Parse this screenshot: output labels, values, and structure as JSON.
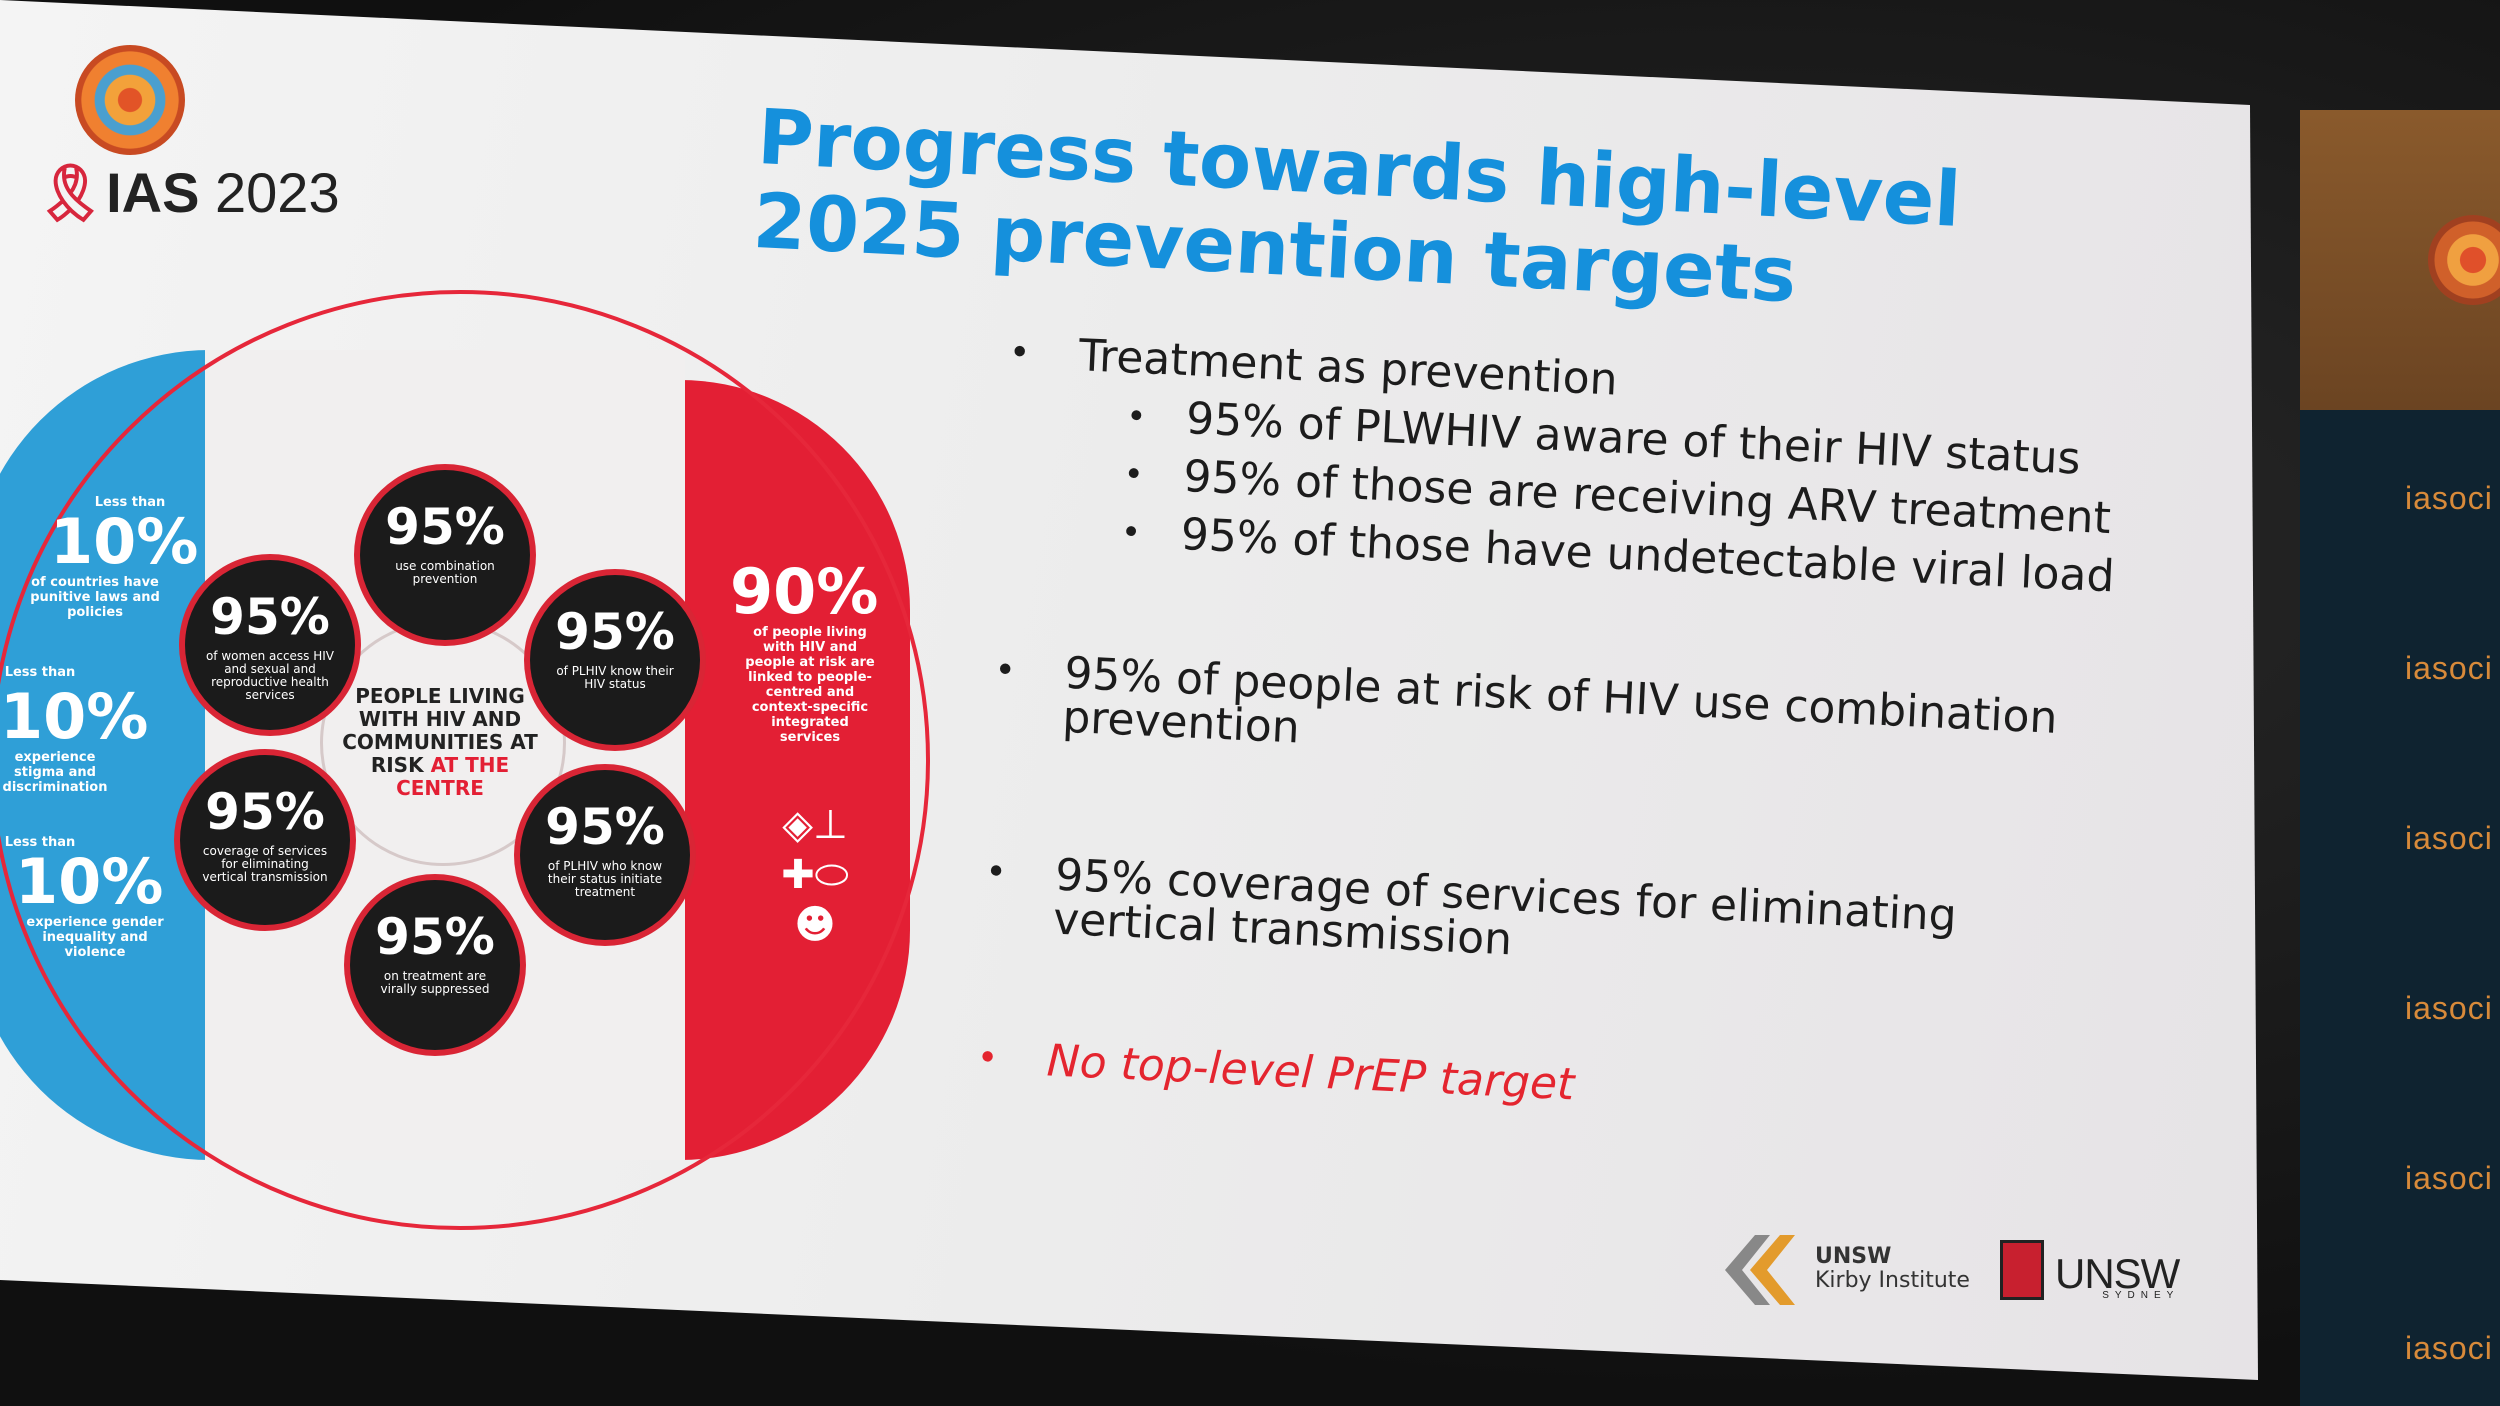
{
  "event": {
    "ribbon": "♑",
    "brand": "IAS",
    "year": "2023"
  },
  "slide": {
    "title_line1": "Progress towards high-level",
    "title_line2": "2025 prevention targets",
    "bullets": [
      {
        "text": "Treatment as prevention"
      },
      {
        "text": "95% of people at risk of HIV use combination"
      },
      {
        "text": "95% coverage of services for eliminating"
      },
      {
        "text": "No top-level PrEP target"
      }
    ],
    "bullet2_cont": "prevention",
    "bullet3_cont": "vertical transmission",
    "sub_bullets": [
      "95% of PLWHIV aware of their HIV status",
      "95% of those are receiving ARV treatment",
      "95% of those have undetectable viral load"
    ],
    "accent_red": "#e4252f",
    "title_color": "#1590dc"
  },
  "infographic": {
    "left_stats": [
      {
        "big": "10%",
        "small_pre": "Less than",
        "small": "of countries have punitive laws and policies"
      },
      {
        "big": "10%",
        "small_pre": "Less than",
        "small": "experience stigma and discrimination"
      },
      {
        "big": "10%",
        "small_pre": "Less than",
        "small": "experience gender inequality and violence"
      }
    ],
    "right_stat": {
      "big": "90%",
      "small": "of people living with HIV and people at risk are linked to people-centred and context-specific integrated services"
    },
    "nodes": [
      {
        "pct": "95%",
        "cap": "use combination prevention"
      },
      {
        "pct": "95%",
        "cap": "of PLHIV know their HIV status"
      },
      {
        "pct": "95%",
        "cap": "of PLHIV who know their status initiate treatment"
      },
      {
        "pct": "95%",
        "cap": "on treatment are virally suppressed"
      },
      {
        "pct": "95%",
        "cap": "coverage of services for eliminating vertical transmission"
      },
      {
        "pct": "95%",
        "cap": "of women access HIV and sexual and reproductive health services"
      }
    ],
    "center_a": "PEOPLE LIVING WITH HIV AND COMMUNITIES AT RISK",
    "center_b": "AT THE CENTRE"
  },
  "logos": {
    "kirby_line1": "UNSW",
    "kirby_line2": "Kirby Institute",
    "unsw": "UNSW",
    "unsw_sub": "SYDNEY"
  },
  "backdrop": {
    "word": "iasoci"
  }
}
